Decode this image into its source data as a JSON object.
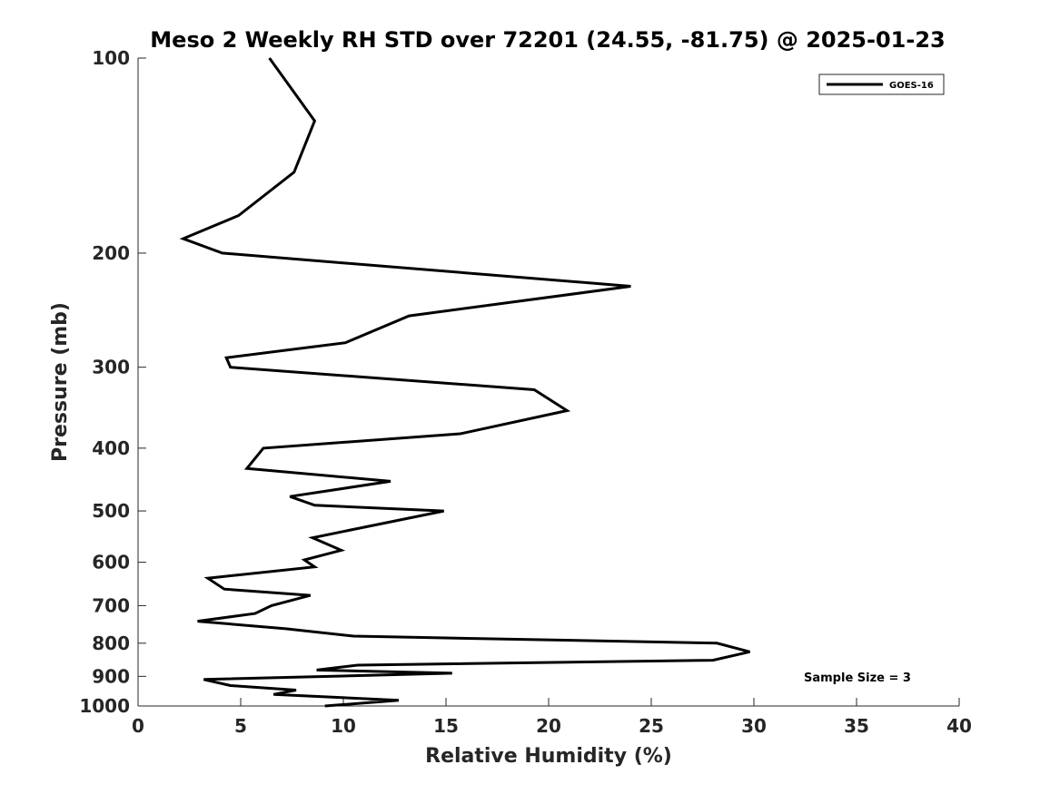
{
  "chart_data": {
    "type": "line",
    "title": "Meso 2 Weekly RH STD over 72201 (24.55, -81.75) @ 2025-01-23",
    "xlabel": "Relative Humidity (%)",
    "ylabel": "Pressure (mb)",
    "xlim": [
      0,
      40
    ],
    "ylim": [
      100,
      1000
    ],
    "y_scale": "log",
    "y_reversed": true,
    "x_ticks": [
      "0",
      "5",
      "10",
      "15",
      "20",
      "25",
      "30",
      "35",
      "40"
    ],
    "y_ticks": [
      "100",
      "200",
      "300",
      "400",
      "500",
      "600",
      "700",
      "800",
      "900",
      "1000"
    ],
    "grid": false,
    "legend_position": "top-right",
    "series": [
      {
        "name": "GOES-16",
        "color": "#000000",
        "x": [
          6.4,
          8.6,
          7.6,
          4.9,
          2.2,
          4.1,
          24.0,
          13.2,
          10.1,
          4.3,
          4.5,
          19.3,
          20.9,
          15.7,
          6.1,
          5.3,
          12.3,
          7.4,
          8.6,
          14.9,
          8.5,
          9.9,
          8.1,
          8.6,
          3.4,
          4.2,
          8.4,
          6.5,
          5.7,
          2.9,
          7.2,
          10.5,
          28.2,
          29.8,
          28.0,
          10.7,
          8.7,
          15.3,
          3.2,
          4.5,
          7.7,
          6.6,
          12.7,
          9.1
        ],
        "y": [
          100,
          125,
          150,
          175,
          190,
          200,
          225,
          250,
          275,
          290,
          300,
          325,
          350,
          380,
          400,
          430,
          450,
          475,
          490,
          500,
          550,
          575,
          595,
          610,
          635,
          660,
          675,
          700,
          720,
          740,
          760,
          780,
          800,
          825,
          850,
          865,
          880,
          890,
          910,
          930,
          945,
          960,
          980,
          1000
        ]
      }
    ],
    "annotations": [
      "Sample Size = 3"
    ]
  }
}
